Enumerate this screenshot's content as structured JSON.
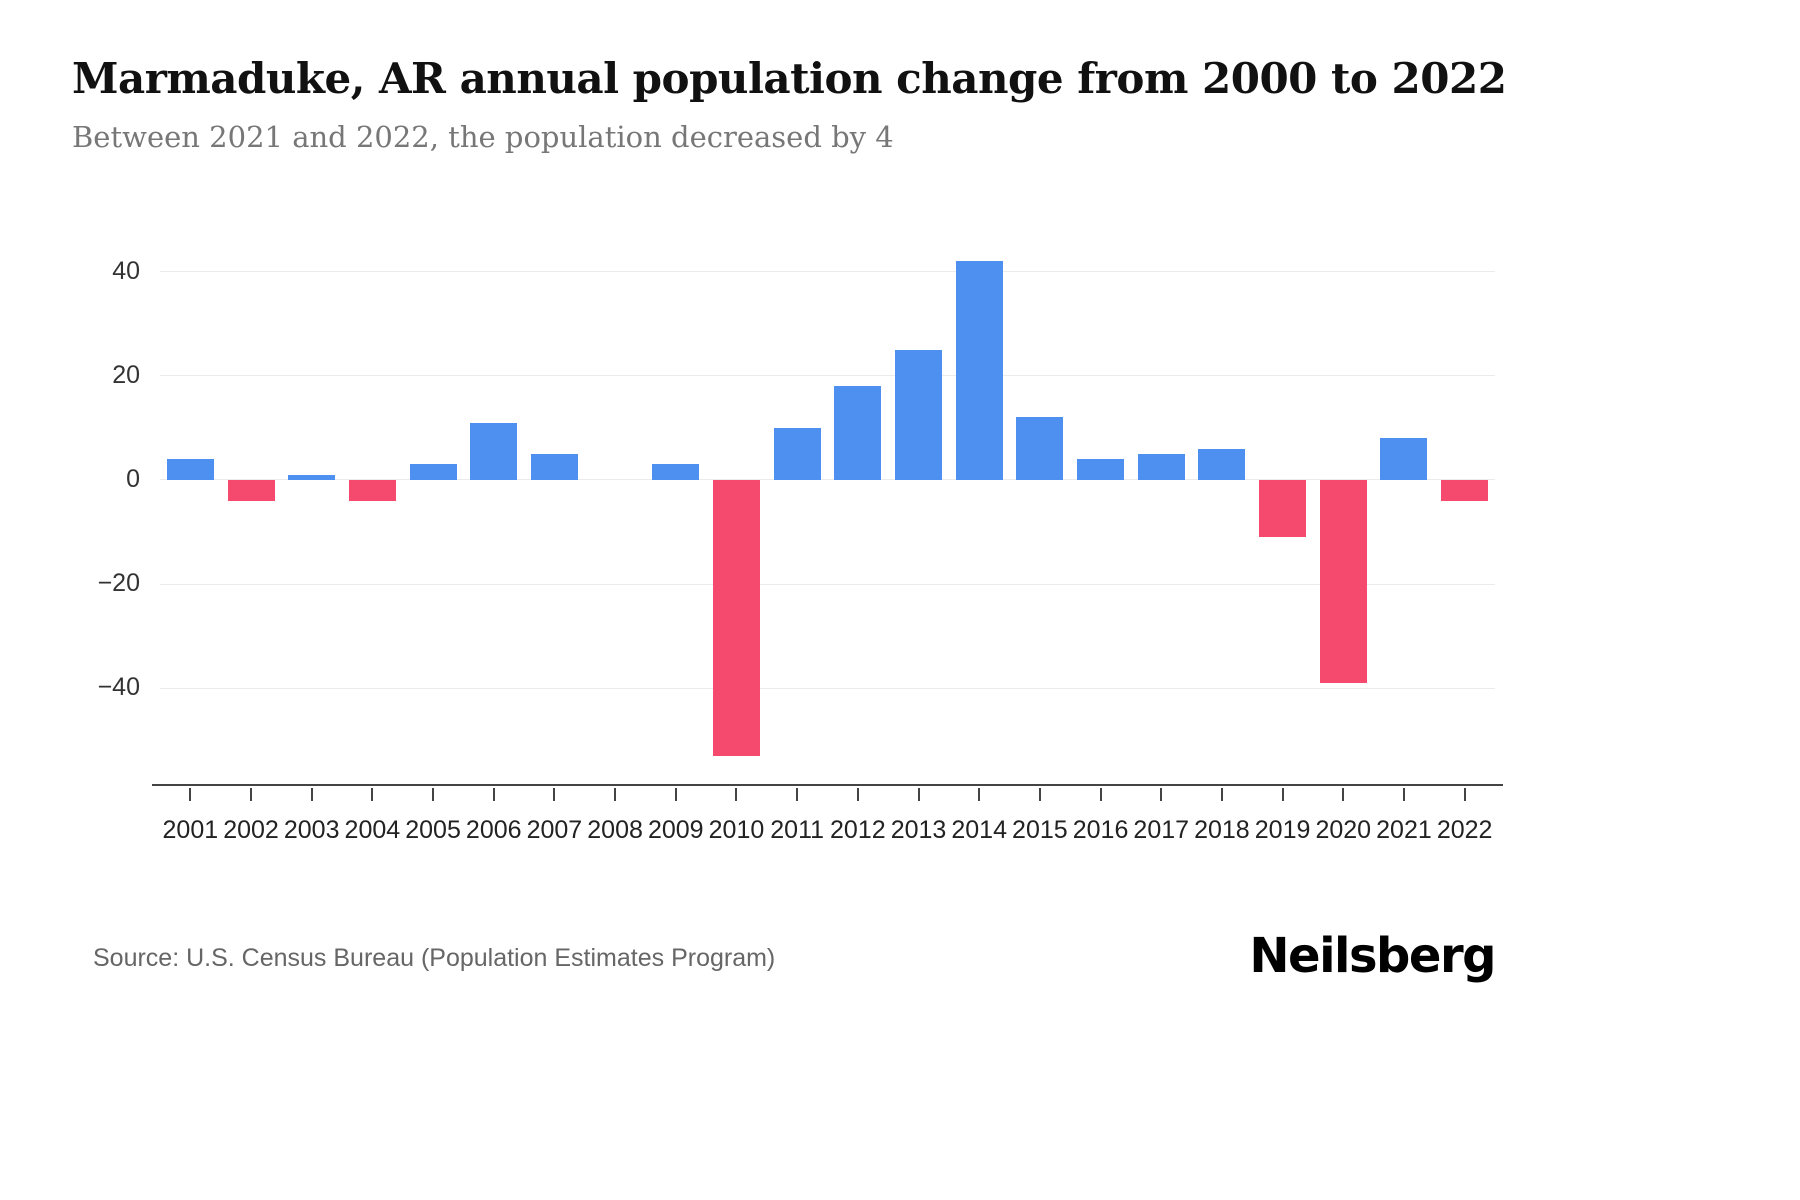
{
  "header": {
    "title": "Marmaduke, AR annual population change from 2000 to 2022",
    "subtitle": "Between 2021 and 2022, the population decreased by 4"
  },
  "footer": {
    "source": "Source: U.S. Census Bureau (Population Estimates Program)",
    "brand": "Neilsberg"
  },
  "chart_data": {
    "type": "bar",
    "title": "Marmaduke, AR annual population change from 2000 to 2022",
    "xlabel": "",
    "ylabel": "",
    "categories": [
      "2001",
      "2002",
      "2003",
      "2004",
      "2005",
      "2006",
      "2007",
      "2008",
      "2009",
      "2010",
      "2011",
      "2012",
      "2013",
      "2014",
      "2015",
      "2016",
      "2017",
      "2018",
      "2019",
      "2020",
      "2021",
      "2022"
    ],
    "values": [
      4,
      -4,
      1,
      -4,
      3,
      11,
      5,
      0,
      3,
      -53,
      10,
      18,
      25,
      42,
      12,
      4,
      5,
      6,
      -11,
      -39,
      8,
      -4
    ],
    "ylim": [
      -58,
      48
    ],
    "yticks": [
      {
        "value": 40,
        "label": "40"
      },
      {
        "value": 20,
        "label": "20"
      },
      {
        "value": 0,
        "label": "0"
      },
      {
        "value": -20,
        "label": "−20"
      },
      {
        "value": -40,
        "label": "−40"
      }
    ],
    "grid": true,
    "legend": "none",
    "colors": {
      "positive": "#4d90ef",
      "negative": "#f5496e"
    }
  }
}
